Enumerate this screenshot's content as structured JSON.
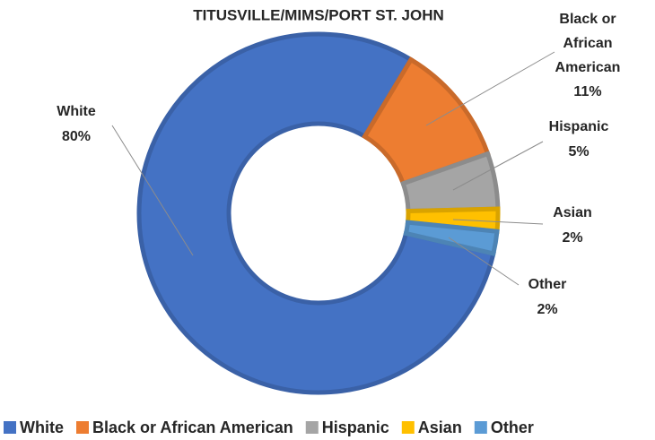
{
  "chart_data": {
    "type": "donut",
    "title": "TITUSVILLE/MIMS/PORT ST. JOHN",
    "categories": [
      "White",
      "Black or African American",
      "Hispanic",
      "Asian",
      "Other"
    ],
    "values": [
      80,
      11,
      5,
      2,
      2
    ],
    "value_labels": [
      "80%",
      "11%",
      "5%",
      "2%",
      "2%"
    ],
    "colors": [
      "#4472c4",
      "#ed7d31",
      "#a5a5a5",
      "#ffc000",
      "#5b9bd5"
    ],
    "legend": "bottom"
  }
}
